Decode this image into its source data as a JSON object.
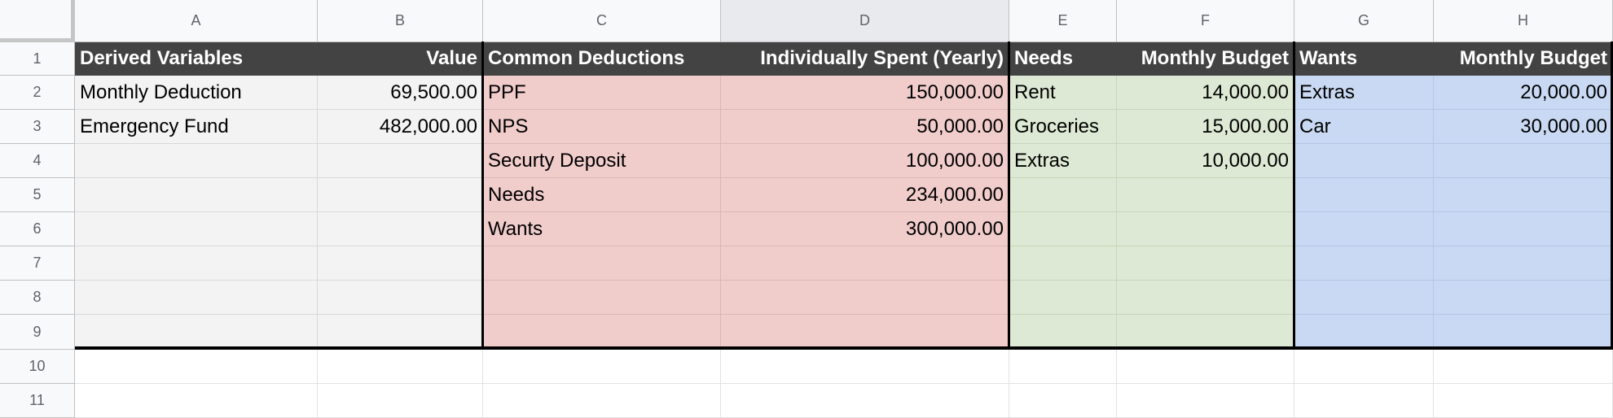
{
  "columns": [
    "A",
    "B",
    "C",
    "D",
    "E",
    "F",
    "G",
    "H"
  ],
  "rows": [
    "1",
    "2",
    "3",
    "4",
    "5",
    "6",
    "7",
    "8",
    "9",
    "10",
    "11"
  ],
  "cells": {
    "A1": "Derived Variables",
    "B1": "Value",
    "C1": "Common Deductions",
    "D1": "Individually Spent (Yearly)",
    "E1": "Needs",
    "F1": "Monthly Budget",
    "G1": "Wants",
    "H1": "Monthly Budget",
    "A2": "Monthly Deduction",
    "B2": "69,500.00",
    "C2": "PPF",
    "D2": "150,000.00",
    "E2": "Rent",
    "F2": "14,000.00",
    "G2": "Extras",
    "H2": "20,000.00",
    "A3": "Emergency Fund",
    "B3": "482,000.00",
    "C3": "NPS",
    "D3": "50,000.00",
    "E3": "Groceries",
    "F3": "15,000.00",
    "G3": "Car",
    "H3": "30,000.00",
    "C4": "Securty Deposit",
    "D4": "100,000.00",
    "E4": "Extras",
    "F4": "10,000.00",
    "C5": "Needs",
    "D5": "234,000.00",
    "C6": "Wants",
    "D6": "300,000.00"
  },
  "colors": {
    "header_bg": "#434343",
    "derived_bg": "#f3f3f3",
    "deductions_bg": "#f0cccb",
    "needs_bg": "#dde9d4",
    "wants_bg": "#c9d9f3"
  }
}
